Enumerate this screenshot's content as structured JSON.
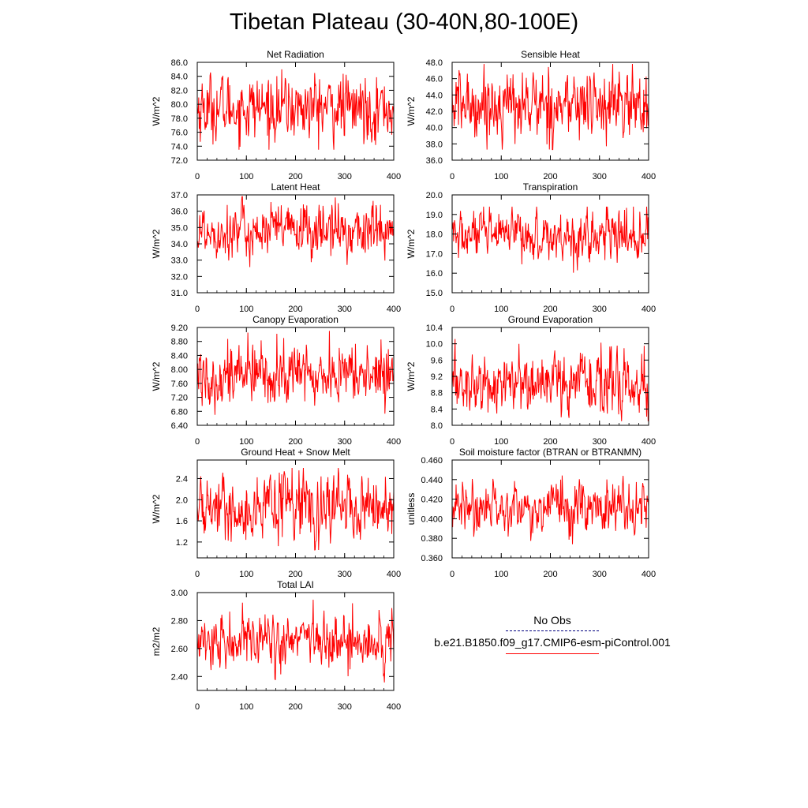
{
  "title": "Tibetan Plateau (30-40N,80-100E)",
  "legend": {
    "obs_label": "No Obs",
    "case_label": "b.e21.B1850.f09_g17.CMIP6-esm-piControl.001",
    "obs_color": "#000080",
    "case_color": "#ff0000"
  },
  "chart_data": [
    {
      "type": "line",
      "title": "Net Radiation",
      "ylabel": "W/m^2",
      "xlim": [
        0,
        400
      ],
      "xticks": [
        "0",
        "100",
        "200",
        "300",
        "400"
      ],
      "ylim": [
        72.0,
        86.0
      ],
      "yticks": [
        "72.0",
        "74.0",
        "76.0",
        "78.0",
        "80.0",
        "82.0",
        "84.0",
        "86.0"
      ],
      "series": [
        {
          "name": "b.e21.B1850.f09_g17.CMIP6-esm-piControl.001",
          "mean": 79.5,
          "amplitude": 2.2,
          "min": 73.5,
          "max": 85.0,
          "n": 400
        }
      ]
    },
    {
      "type": "line",
      "title": "Sensible Heat",
      "ylabel": "W/m^2",
      "xlim": [
        0,
        400
      ],
      "xticks": [
        "0",
        "100",
        "200",
        "300",
        "400"
      ],
      "ylim": [
        36.0,
        48.0
      ],
      "yticks": [
        "36.0",
        "38.0",
        "40.0",
        "42.0",
        "44.0",
        "46.0",
        "48.0"
      ],
      "series": [
        {
          "name": "b.e21.B1850.f09_g17.CMIP6-esm-piControl.001",
          "mean": 42.8,
          "amplitude": 2.0,
          "min": 37.3,
          "max": 47.8,
          "n": 400
        }
      ]
    },
    {
      "type": "line",
      "title": "Latent Heat",
      "ylabel": "W/m^2",
      "xlim": [
        0,
        400
      ],
      "xticks": [
        "0",
        "100",
        "200",
        "300",
        "400"
      ],
      "ylim": [
        31.0,
        37.0
      ],
      "yticks": [
        "31.0",
        "32.0",
        "33.0",
        "34.0",
        "35.0",
        "36.0",
        "37.0"
      ],
      "series": [
        {
          "name": "b.e21.B1850.f09_g17.CMIP6-esm-piControl.001",
          "mean": 34.8,
          "amplitude": 0.8,
          "min": 31.9,
          "max": 36.9,
          "n": 400
        }
      ]
    },
    {
      "type": "line",
      "title": "Transpiration",
      "ylabel": "W/m^2",
      "xlim": [
        0,
        400
      ],
      "xticks": [
        "0",
        "100",
        "200",
        "300",
        "400"
      ],
      "ylim": [
        15.0,
        20.0
      ],
      "yticks": [
        "15.0",
        "16.0",
        "17.0",
        "18.0",
        "19.0",
        "20.0"
      ],
      "series": [
        {
          "name": "b.e21.B1850.f09_g17.CMIP6-esm-piControl.001",
          "mean": 17.9,
          "amplitude": 0.6,
          "min": 15.9,
          "max": 19.4,
          "n": 400
        }
      ]
    },
    {
      "type": "line",
      "title": "Canopy Evaporation",
      "ylabel": "W/m^2",
      "xlim": [
        0,
        400
      ],
      "xticks": [
        "0",
        "100",
        "200",
        "300",
        "400"
      ],
      "ylim": [
        6.4,
        9.2
      ],
      "yticks": [
        "6.40",
        "6.80",
        "7.20",
        "7.60",
        "8.00",
        "8.40",
        "8.80",
        "9.20"
      ],
      "series": [
        {
          "name": "b.e21.B1850.f09_g17.CMIP6-esm-piControl.001",
          "mean": 7.85,
          "amplitude": 0.42,
          "min": 6.7,
          "max": 9.1,
          "n": 400
        }
      ]
    },
    {
      "type": "line",
      "title": "Ground Evaporation",
      "ylabel": "W/m^2",
      "xlim": [
        0,
        400
      ],
      "xticks": [
        "0",
        "100",
        "200",
        "300",
        "400"
      ],
      "ylim": [
        8.0,
        10.4
      ],
      "yticks": [
        "8.0",
        "8.4",
        "8.8",
        "9.2",
        "9.6",
        "10.0",
        "10.4"
      ],
      "series": [
        {
          "name": "b.e21.B1850.f09_g17.CMIP6-esm-piControl.001",
          "mean": 9.0,
          "amplitude": 0.35,
          "min": 8.1,
          "max": 10.2,
          "n": 400
        }
      ]
    },
    {
      "type": "line",
      "title": "Ground Heat + Snow Melt",
      "ylabel": "W/m^2",
      "xlim": [
        0,
        400
      ],
      "xticks": [
        "0",
        "100",
        "200",
        "300",
        "400"
      ],
      "ylim": [
        0.9,
        2.75
      ],
      "yticks": [
        "1.2",
        "1.6",
        "2.0",
        "2.4"
      ],
      "series": [
        {
          "name": "b.e21.B1850.f09_g17.CMIP6-esm-piControl.001",
          "mean": 1.85,
          "amplitude": 0.28,
          "min": 1.05,
          "max": 2.6,
          "n": 400
        }
      ]
    },
    {
      "type": "line",
      "title": "Soil moisture factor (BTRAN or BTRANMN)",
      "ylabel": "unitless",
      "xlim": [
        0,
        400
      ],
      "xticks": [
        "0",
        "100",
        "200",
        "300",
        "400"
      ],
      "ylim": [
        0.36,
        0.46
      ],
      "yticks": [
        "0.360",
        "0.380",
        "0.400",
        "0.420",
        "0.440",
        "0.460"
      ],
      "series": [
        {
          "name": "b.e21.B1850.f09_g17.CMIP6-esm-piControl.001",
          "mean": 0.412,
          "amplitude": 0.012,
          "min": 0.365,
          "max": 0.451,
          "n": 400
        }
      ]
    },
    {
      "type": "line",
      "title": "Total LAI",
      "ylabel": "m2/m2",
      "xlim": [
        0,
        400
      ],
      "xticks": [
        "0",
        "100",
        "200",
        "300",
        "400"
      ],
      "ylim": [
        2.3,
        3.0
      ],
      "yticks": [
        "2.40",
        "2.60",
        "2.80",
        "3.00"
      ],
      "series": [
        {
          "name": "b.e21.B1850.f09_g17.CMIP6-esm-piControl.001",
          "mean": 2.65,
          "amplitude": 0.09,
          "min": 2.34,
          "max": 2.95,
          "n": 400
        }
      ]
    }
  ]
}
